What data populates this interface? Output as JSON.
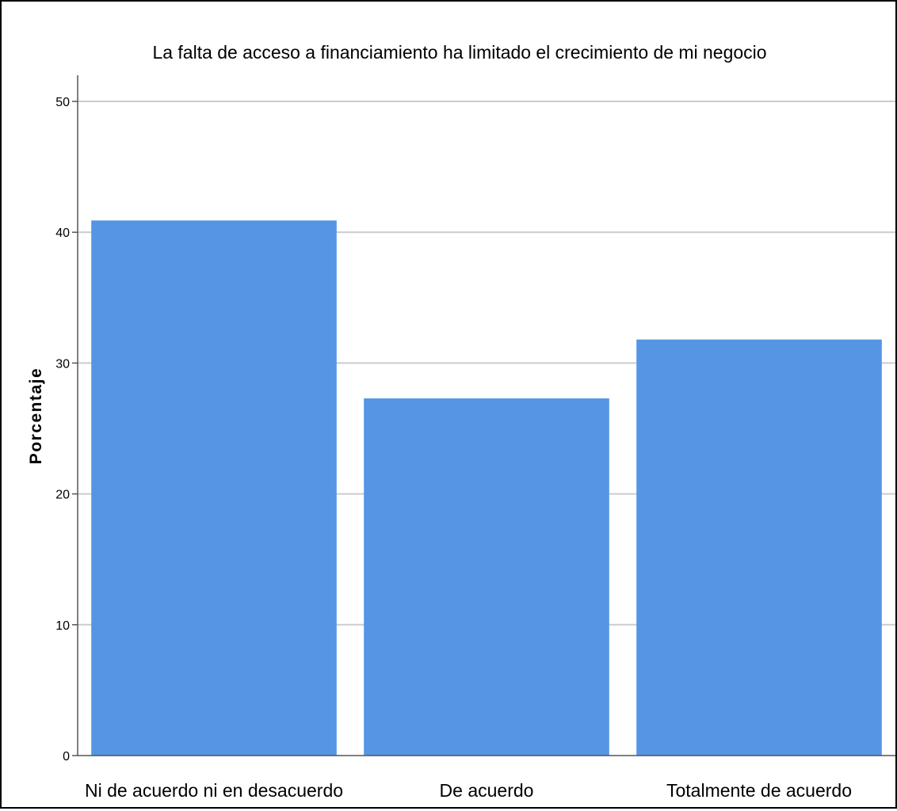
{
  "chart_data": {
    "type": "bar",
    "title": "La falta de acceso a financiamiento ha limitado el crecimiento de mi negocio",
    "xlabel": "",
    "ylabel": "Porcentaje",
    "categories": [
      "Ni de acuerdo ni en desacuerdo",
      "De acuerdo",
      "Totalmente de acuerdo"
    ],
    "values": [
      40.9,
      27.3,
      31.8
    ],
    "ylim": [
      0,
      52
    ],
    "yticks": [
      "0",
      "10",
      "20",
      "30",
      "40",
      "50"
    ],
    "grid": true,
    "bar_color": "#5595e3",
    "grid_color": "#cccccc"
  }
}
